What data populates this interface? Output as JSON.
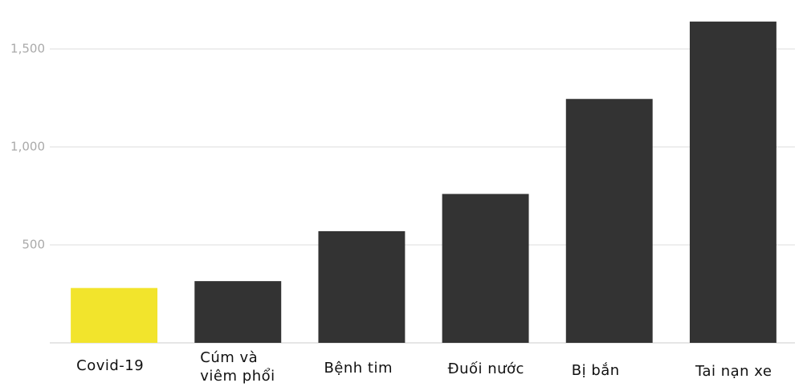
{
  "chart_data": {
    "type": "bar",
    "categories": [
      "Covid-19",
      "Cúm và viêm phổi",
      "Bệnh tim",
      "Đuối nước",
      "Bị bắn",
      "Tai nạn xe"
    ],
    "values": [
      280,
      315,
      570,
      760,
      1245,
      1640
    ],
    "colors": [
      "#f2e42c",
      "#333333",
      "#333333",
      "#333333",
      "#333333",
      "#333333"
    ],
    "ylim": [
      0,
      1750
    ],
    "yticks": [
      500,
      {
        "value": 1000,
        "label": "1,000"
      },
      {
        "value": 1500,
        "label": "1,500"
      }
    ],
    "grid": true
  }
}
